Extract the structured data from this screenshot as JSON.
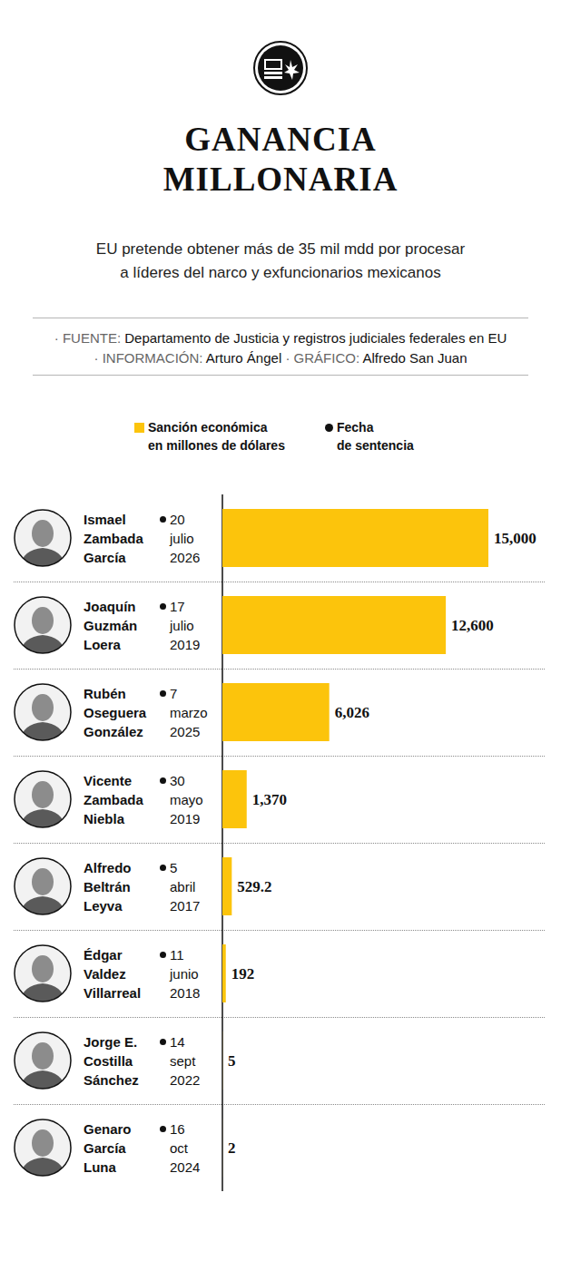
{
  "chart_data": {
    "type": "bar",
    "orientation": "horizontal",
    "title": "GANANCIA MILLONARIA",
    "subtitle": "EU pretende obtener más de 35 mil mdd por procesar a líderes del narco y exfuncionarios mexicanos",
    "credits": [
      [
        {
          "label": "· FUENTE:",
          "text": "Departamento de Justicia y registros judiciales federales en EU"
        }
      ],
      [
        {
          "label": "· INFORMACIÓN:",
          "text": "Arturo Ángel"
        },
        {
          "label": "· GRÁFICO:",
          "text": "Alfredo San Juan"
        }
      ]
    ],
    "categories": [
      "Ismael Zambada García",
      "Joaquín Guzmán Loera",
      "Rubén Oseguera González",
      "Vicente Zambada Niebla",
      "Alfredo Beltrán Leyva",
      "Édgar Valdez Villarreal",
      "Jorge E. Costilla Sánchez",
      "Genaro García Luna"
    ],
    "series": [
      {
        "name": "Sanción económica en millones de dólares",
        "color": "#fcc40c",
        "values": [
          15000,
          12600,
          6026,
          1370,
          529.2,
          192,
          5,
          2
        ],
        "value_labels": [
          "15,000",
          "12,600",
          "6,026",
          "1,370",
          "529.2",
          "192",
          "5",
          "2"
        ]
      }
    ],
    "dates": {
      "name": "Fecha de sentencia",
      "color": "#111111",
      "marker": "circle",
      "values": [
        "20 julio 2026",
        "17 julio 2019",
        "7 marzo 2025",
        "30 mayo 2019",
        "5 abril 2017",
        "11 junio 2018",
        "14 sept 2022",
        "16 oct 2024"
      ]
    },
    "xlim": [
      0,
      15000
    ],
    "tick_labels": "y",
    "grid": false,
    "data_labels": true,
    "legend": "top"
  }
}
